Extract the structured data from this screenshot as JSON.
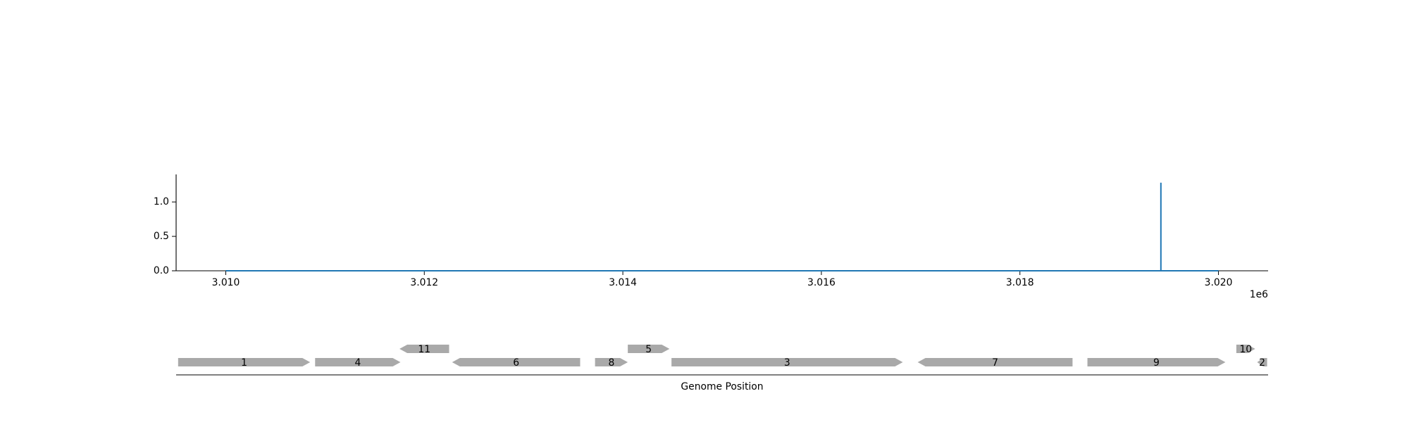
{
  "chart_data": [
    {
      "type": "line",
      "title": "",
      "xlabel": "",
      "ylabel": "",
      "x_offset_label": "1e6",
      "xlim": [
        3009500,
        3020500
      ],
      "ylim": [
        0,
        1.4
      ],
      "grid": false,
      "legend": "none",
      "x_ticks": [
        3010000,
        3012000,
        3014000,
        3016000,
        3018000,
        3020000
      ],
      "x_tick_labels": [
        "3.010",
        "3.012",
        "3.014",
        "3.016",
        "3.018",
        "3.020"
      ],
      "y_ticks": [
        0.0,
        0.5,
        1.0
      ],
      "y_tick_labels": [
        "0.0",
        "0.5",
        "1.0"
      ],
      "series": [
        {
          "color": "#1f77b4",
          "x": [
            3010000,
            3019420,
            3019420,
            3019420,
            3019420,
            3020000
          ],
          "y": [
            0,
            0,
            0,
            1.28,
            0,
            0
          ]
        }
      ]
    },
    {
      "type": "gene-map",
      "xlabel": "Genome Position",
      "xlim": [
        3009500,
        3020500
      ],
      "feature_color": "#a9a9a9",
      "features": [
        {
          "label": "1",
          "start": 3009520,
          "end": 3010850,
          "strand": 1,
          "level": 0
        },
        {
          "label": "4",
          "start": 3010900,
          "end": 3011760,
          "strand": 1,
          "level": 0
        },
        {
          "label": "11",
          "start": 3011750,
          "end": 3012250,
          "strand": -1,
          "level": 1
        },
        {
          "label": "6",
          "start": 3012280,
          "end": 3013570,
          "strand": -1,
          "level": 0
        },
        {
          "label": "8",
          "start": 3013720,
          "end": 3014050,
          "strand": 1,
          "level": 0
        },
        {
          "label": "5",
          "start": 3014050,
          "end": 3014470,
          "strand": 1,
          "level": 1
        },
        {
          "label": "3",
          "start": 3014490,
          "end": 3016820,
          "strand": 1,
          "level": 0
        },
        {
          "label": "7",
          "start": 3016970,
          "end": 3018530,
          "strand": -1,
          "level": 0
        },
        {
          "label": "9",
          "start": 3018680,
          "end": 3020070,
          "strand": 1,
          "level": 0
        },
        {
          "label": "10",
          "start": 3020180,
          "end": 3020370,
          "strand": 1,
          "level": 1
        },
        {
          "label": "2",
          "start": 3020390,
          "end": 3020490,
          "strand": -1,
          "level": 0
        }
      ]
    }
  ]
}
